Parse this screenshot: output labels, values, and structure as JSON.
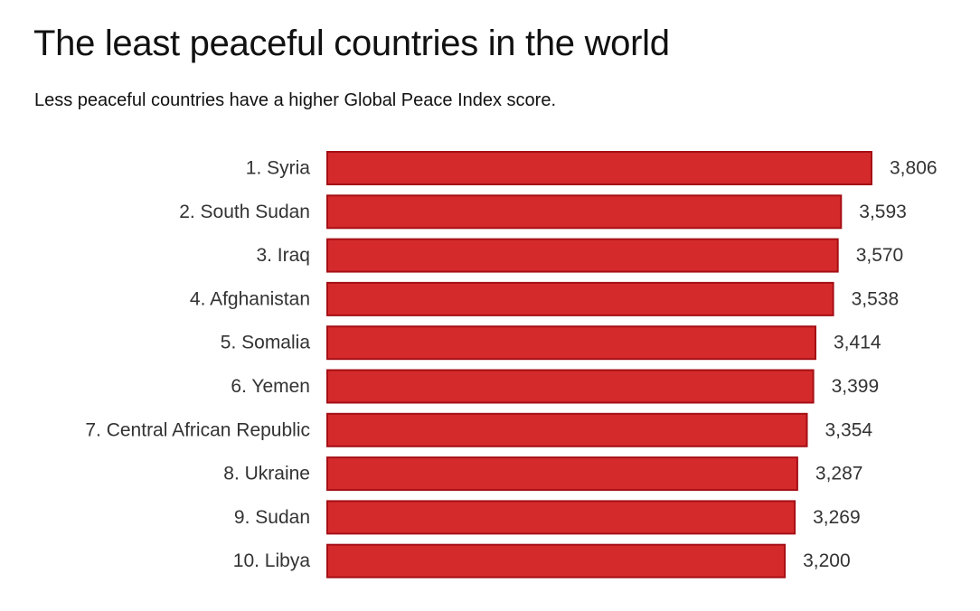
{
  "chart_data": {
    "type": "bar",
    "orientation": "horizontal",
    "title": "The least peaceful countries in the world",
    "subtitle": "Less peaceful countries have a higher Global Peace Index score.",
    "categories": [
      "1. Syria",
      "2. South Sudan",
      "3. Iraq",
      "4. Afghanistan",
      "5. Somalia",
      "6. Yemen",
      "7. Central African Republic",
      "8. Ukraine",
      "9. Sudan",
      "10. Libya"
    ],
    "values": [
      3.806,
      3.593,
      3.57,
      3.538,
      3.414,
      3.399,
      3.354,
      3.287,
      3.269,
      3.2
    ],
    "value_labels": [
      "3,806",
      "3,593",
      "3,570",
      "3,538",
      "3,414",
      "3,399",
      "3,354",
      "3,287",
      "3,269",
      "3,200"
    ],
    "xlim": [
      0,
      3.806
    ],
    "grid": false,
    "legend": "none",
    "colors": {
      "bar_fill": "#d42a2c",
      "bar_stroke": "#a50f15"
    }
  }
}
